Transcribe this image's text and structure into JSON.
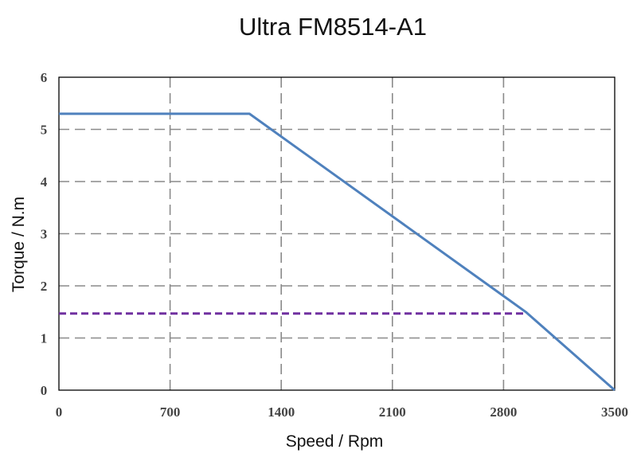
{
  "chart_data": {
    "type": "line",
    "title": "Ultra FM8514-A1",
    "xlabel": "Speed / Rpm",
    "ylabel": "Torque / N.m",
    "xlim": [
      0,
      3500
    ],
    "ylim": [
      0,
      6
    ],
    "xticks": [
      "0",
      "700",
      "1400",
      "2100",
      "2800",
      "3500"
    ],
    "yticks": [
      "0",
      "1",
      "2",
      "3",
      "4",
      "5",
      "6"
    ],
    "grid": true,
    "series": [
      {
        "color": "#4f81bd",
        "style": "solid",
        "x": [
          0,
          1200,
          2940,
          3500
        ],
        "y": [
          5.3,
          5.3,
          1.5,
          0
        ]
      },
      {
        "color": "#7030a0",
        "style": "dashed",
        "x": [
          0,
          2940
        ],
        "y": [
          1.47,
          1.47
        ]
      }
    ]
  }
}
